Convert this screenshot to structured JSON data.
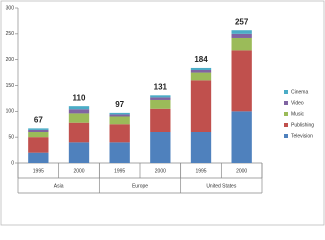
{
  "chart_data": {
    "type": "stacked-bar",
    "categories": [
      "1995",
      "2000",
      "1995",
      "2000",
      "1995",
      "2000"
    ],
    "groups": [
      "Asia",
      "Europe",
      "United States"
    ],
    "series": [
      {
        "name": "Television",
        "color": "#4f81bd",
        "values": [
          20,
          40,
          40,
          60,
          60,
          100
        ]
      },
      {
        "name": "Publishing",
        "color": "#c0504d",
        "values": [
          30,
          38,
          35,
          45,
          100,
          118
        ]
      },
      {
        "name": "Music",
        "color": "#9bbb59",
        "values": [
          10,
          18,
          15,
          17,
          15,
          24
        ]
      },
      {
        "name": "Video",
        "color": "#8064a2",
        "values": [
          4,
          8,
          4,
          5,
          5,
          8
        ]
      },
      {
        "name": "Cinema",
        "color": "#4bacc6",
        "values": [
          3,
          6,
          3,
          4,
          4,
          7
        ]
      }
    ],
    "totals": [
      67,
      110,
      97,
      131,
      184,
      257
    ],
    "ylim": [
      0,
      300
    ],
    "yticks": [
      0,
      50,
      100,
      150,
      200,
      250,
      300
    ]
  }
}
